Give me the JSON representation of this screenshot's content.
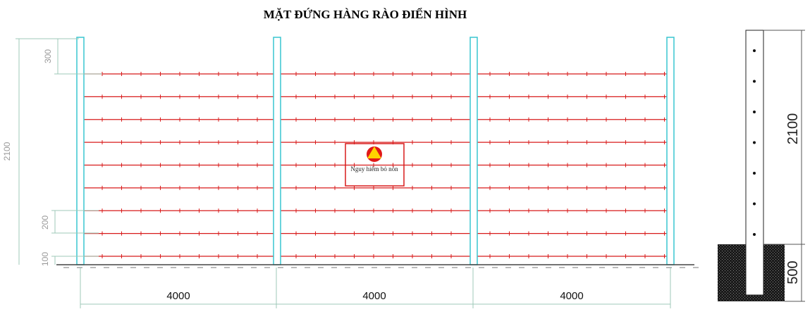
{
  "title": "MẶT ĐỨNG HÀNG RÀO ĐIỂN HÌNH",
  "elevation": {
    "panel_widths": [
      "4000",
      "4000",
      "4000"
    ],
    "height_total": "2100",
    "top_offset": "300",
    "wire_spacing": "200",
    "bottom_offset": "100",
    "wire_count": 9,
    "post_count": 4,
    "sign_text": "Nguy hiểm bỏ nón"
  },
  "section": {
    "height_above": "2100",
    "embed_depth": "500",
    "hole_count": 7
  },
  "colors": {
    "wire": "#d81b1b",
    "post": "#39c5d0",
    "sign_triangle": "#ffd400",
    "sign_circle": "#e01818",
    "ground": "#222222"
  }
}
